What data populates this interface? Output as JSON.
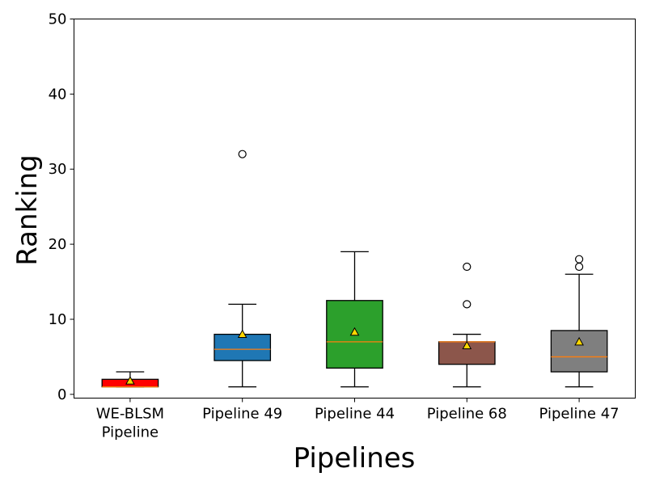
{
  "chart_data": {
    "type": "boxplot",
    "title": "",
    "xlabel": "Pipelines",
    "ylabel": "Ranking",
    "ylim": [
      -0.5,
      50
    ],
    "yticks": [
      0,
      10,
      20,
      30,
      40,
      50
    ],
    "grid": false,
    "series": [
      {
        "name": "WE-BLSM Pipeline",
        "label_lines": [
          "WE-BLSM",
          "Pipeline"
        ],
        "color": "#ff0000",
        "whisker_low": 1,
        "q1": 1,
        "median": 1,
        "q3": 2,
        "whisker_high": 3,
        "mean": 1.8,
        "outliers": []
      },
      {
        "name": "Pipeline 49",
        "label_lines": [
          "Pipeline 49"
        ],
        "color": "#1f77b4",
        "whisker_low": 1,
        "q1": 4.5,
        "median": 6,
        "q3": 8,
        "whisker_high": 12,
        "mean": 8,
        "outliers": [
          32
        ]
      },
      {
        "name": "Pipeline 44",
        "label_lines": [
          "Pipeline 44"
        ],
        "color": "#2ca02c",
        "whisker_low": 1,
        "q1": 3.5,
        "median": 7,
        "q3": 12.5,
        "whisker_high": 19,
        "mean": 8.3,
        "outliers": []
      },
      {
        "name": "Pipeline 68",
        "label_lines": [
          "Pipeline 68"
        ],
        "color": "#8c564b",
        "whisker_low": 1,
        "q1": 4,
        "median": 7,
        "q3": 7,
        "whisker_high": 8,
        "mean": 6.5,
        "outliers": [
          12,
          17
        ]
      },
      {
        "name": "Pipeline 47",
        "label_lines": [
          "Pipeline 47"
        ],
        "color": "#7f7f7f",
        "whisker_low": 1,
        "q1": 3,
        "median": 5,
        "q3": 8.5,
        "whisker_high": 16,
        "mean": 7,
        "outliers": [
          17,
          18
        ]
      }
    ],
    "median_color": "#ff7f0e",
    "mean_marker_color": "#ffd700"
  }
}
